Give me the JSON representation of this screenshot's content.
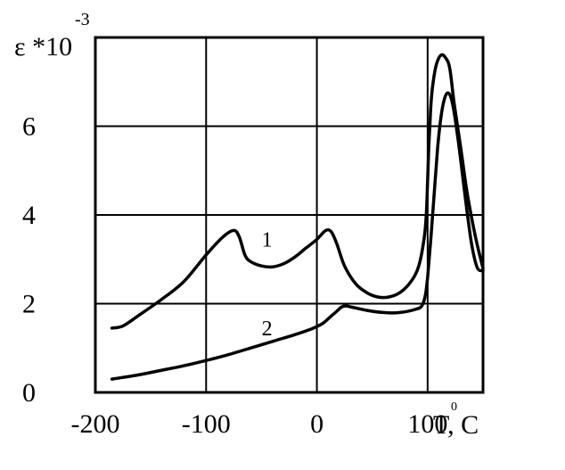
{
  "chart_data": {
    "type": "line",
    "title": "",
    "ylabel": "ε *10",
    "ylabel_exponent": "-3",
    "xlabel": "T, C",
    "xlabel_superscript": "0",
    "xlim": [
      -200,
      150
    ],
    "ylim": [
      0,
      8
    ],
    "grid": true,
    "x_ticks": [
      {
        "value": -200,
        "label": "-200"
      },
      {
        "value": -100,
        "label": "-100"
      },
      {
        "value": 0,
        "label": "0"
      },
      {
        "value": 100,
        "label": "100"
      }
    ],
    "y_ticks": [
      {
        "value": 0,
        "label": "0"
      },
      {
        "value": 2,
        "label": "2"
      },
      {
        "value": 4,
        "label": "4"
      },
      {
        "value": 6,
        "label": "6"
      }
    ],
    "grid_x": [
      -100,
      0,
      100
    ],
    "grid_y": [
      2,
      4,
      6
    ],
    "series": [
      {
        "name": "1",
        "x": [
          -185,
          -175,
          -160,
          -140,
          -120,
          -100,
          -85,
          -75,
          -70,
          -65,
          -60,
          -50,
          -40,
          -30,
          -20,
          -10,
          0,
          8,
          13,
          18,
          25,
          35,
          45,
          55,
          65,
          75,
          85,
          92,
          97,
          99,
          100,
          101,
          102,
          103,
          105,
          108,
          112,
          116,
          120,
          124,
          130,
          135,
          140,
          145,
          150
        ],
        "y": [
          1.45,
          1.5,
          1.75,
          2.1,
          2.5,
          3.1,
          3.5,
          3.65,
          3.5,
          3.1,
          2.95,
          2.85,
          2.83,
          2.9,
          3.05,
          3.25,
          3.45,
          3.65,
          3.62,
          3.35,
          2.85,
          2.45,
          2.25,
          2.15,
          2.15,
          2.25,
          2.5,
          2.85,
          3.5,
          4.1,
          4.8,
          5.5,
          6.0,
          6.5,
          7.0,
          7.4,
          7.6,
          7.55,
          7.3,
          6.5,
          5.5,
          4.6,
          3.9,
          3.3,
          2.8
        ]
      },
      {
        "name": "2",
        "x": [
          -185,
          -160,
          -140,
          -120,
          -100,
          -80,
          -60,
          -40,
          -20,
          -5,
          5,
          12,
          18,
          22,
          26,
          32,
          45,
          60,
          75,
          90,
          95,
          98,
          100,
          103,
          106,
          109,
          112,
          115,
          118,
          121,
          124,
          128,
          132,
          136,
          140,
          145,
          150
        ],
        "y": [
          0.3,
          0.4,
          0.5,
          0.6,
          0.72,
          0.85,
          1.0,
          1.15,
          1.3,
          1.43,
          1.55,
          1.7,
          1.83,
          1.92,
          1.95,
          1.92,
          1.85,
          1.8,
          1.8,
          1.88,
          1.96,
          2.2,
          2.6,
          3.5,
          4.5,
          5.5,
          6.2,
          6.6,
          6.75,
          6.65,
          6.3,
          5.6,
          4.8,
          4.0,
          3.3,
          2.8,
          2.75
        ]
      }
    ],
    "curve_labels": [
      {
        "text": "1",
        "series": 0,
        "x": -45,
        "y": 3.45
      },
      {
        "text": "2",
        "series": 1,
        "x": -45,
        "y": 1.45
      }
    ]
  }
}
